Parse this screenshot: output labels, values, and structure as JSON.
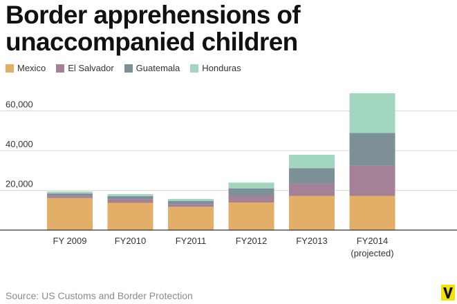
{
  "chart_data": {
    "type": "bar",
    "stacked": true,
    "title": "Border apprehensions of unaccompanied children",
    "title_lines": [
      "Border apprehensions of",
      "unaccompanied children"
    ],
    "categories": [
      "FY 2009",
      "FY2010",
      "FY2011",
      "FY2012",
      "FY2013",
      "FY2014"
    ],
    "category_sublabels": [
      "",
      "",
      "",
      "",
      "",
      "(projected)"
    ],
    "series": [
      {
        "name": "Mexico",
        "color": "#e3ae68",
        "values": [
          16100,
          13700,
          11700,
          13900,
          17200,
          17200
        ]
      },
      {
        "name": "El Salvador",
        "color": "#a48196",
        "values": [
          1200,
          1900,
          1400,
          3300,
          5900,
          15200
        ]
      },
      {
        "name": "Guatemala",
        "color": "#7d9098",
        "values": [
          1100,
          1500,
          1600,
          3800,
          8100,
          16500
        ]
      },
      {
        "name": "Honduras",
        "color": "#a3d6bf",
        "values": [
          1000,
          1000,
          1000,
          2900,
          6700,
          20000
        ]
      }
    ],
    "y_ticks": [
      20000,
      40000,
      60000
    ],
    "y_tick_labels": [
      "20,000",
      "40,000",
      "60,000"
    ],
    "ylim": [
      0,
      70000
    ],
    "xlabel": "",
    "ylabel": "",
    "grid": true,
    "legend_position": "top-left"
  },
  "source": "Source: US Customs and Border Protection",
  "logo_text": "V",
  "colors": {
    "logo": "#f4e20b",
    "grid": "#d9d9d9",
    "axis": "#333333",
    "source": "#8a8a8a"
  }
}
